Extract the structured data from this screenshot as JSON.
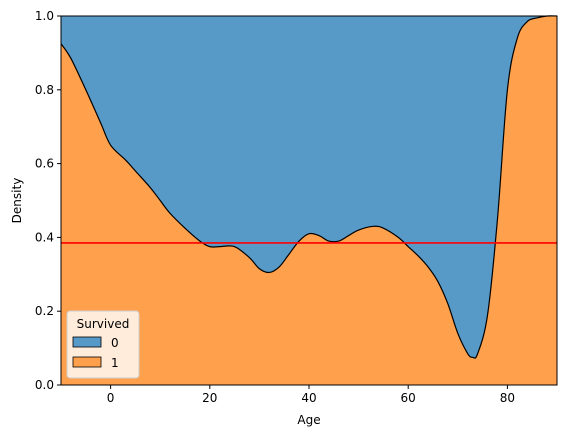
{
  "chart_data": {
    "type": "area",
    "stacked": "fill",
    "xlabel": "Age",
    "ylabel": "Density",
    "xlim": [
      -10,
      90
    ],
    "ylim": [
      0,
      1
    ],
    "xticks": [
      0,
      20,
      40,
      60,
      80
    ],
    "yticks": [
      0.0,
      0.2,
      0.4,
      0.6,
      0.8,
      1.0
    ],
    "grid": false,
    "legend": {
      "title": "Survived",
      "placement": "lower-left",
      "entries": [
        {
          "label": "0",
          "color": "#5799c7"
        },
        {
          "label": "1",
          "color": "#ffa04c"
        }
      ]
    },
    "series": [
      {
        "name": "0",
        "color": "#5799c7",
        "role": "top-band"
      },
      {
        "name": "1",
        "color": "#ffa04c",
        "role": "bottom-band"
      }
    ],
    "boundary": {
      "description": "fraction Survived=1 (bottom band top edge)",
      "x": [
        -10,
        -8,
        -5,
        -2,
        0,
        3,
        5,
        8,
        10,
        12,
        15,
        18,
        20,
        22,
        25,
        28,
        30,
        32,
        34,
        36,
        38,
        40,
        42,
        44,
        46,
        48,
        50,
        53,
        55,
        58,
        60,
        62,
        64,
        66,
        68,
        70,
        72,
        73,
        74,
        76,
        78,
        80,
        82,
        84,
        86,
        88,
        90
      ],
      "y": [
        0.925,
        0.885,
        0.8,
        0.71,
        0.65,
        0.61,
        0.58,
        0.535,
        0.5,
        0.465,
        0.425,
        0.39,
        0.375,
        0.375,
        0.375,
        0.345,
        0.315,
        0.305,
        0.32,
        0.355,
        0.39,
        0.41,
        0.405,
        0.39,
        0.39,
        0.405,
        0.42,
        0.43,
        0.425,
        0.4,
        0.375,
        0.35,
        0.32,
        0.28,
        0.22,
        0.14,
        0.085,
        0.075,
        0.085,
        0.19,
        0.45,
        0.8,
        0.94,
        0.985,
        0.995,
        1.0,
        1.0
      ]
    },
    "reference_line": {
      "y": 0.385,
      "color": "#ff0000"
    }
  }
}
